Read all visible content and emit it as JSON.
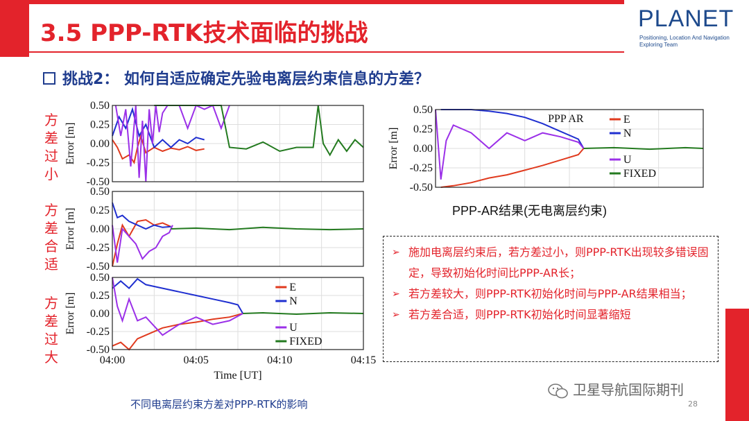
{
  "slide": {
    "title": "3.5 PPP-RTK技术面临的挑战",
    "subtitle": "挑战2： 如何自适应确定先验电离层约束信息的方差？",
    "logo": {
      "name": "PLANET",
      "line1": "Positioning, Location And Navigation",
      "line2": "Exploring Team"
    },
    "row_labels": [
      "方差过小",
      "方差合适",
      "方差过大"
    ],
    "caption_left": "不同电离层约束方差对PPP-RTK的影响",
    "caption_right": "PPP-AR结果(无电离层约束)",
    "notes": [
      "施加电离层约束后，若方差过小，则PPP-RTK出现较多错误固定，导致初始化时间比PPP-AR长；",
      "若方差较大，则PPP-RTK初始化时间与PPP-AR结果相当；",
      "若方差合适，则PPP-RTK初始化时间显著缩短"
    ],
    "watermark": "卫星导航国际期刊",
    "page_number": "28",
    "colors": {
      "accent": "#e3232b",
      "navy": "#1f3c8e",
      "E": "#e03a1e",
      "N": "#1f2fd0",
      "U": "#9b30e8",
      "FIXED": "#237a1f"
    }
  },
  "chart_data": [
    {
      "type": "line",
      "id": "too-small",
      "ylabel": "Error [m]",
      "ylim": [
        -0.5,
        0.5
      ],
      "yticks": [
        "0.50",
        "0.25",
        "0.00",
        "-0.25",
        "-0.50"
      ],
      "xlim_min": [
        0,
        15
      ],
      "xticks": [],
      "series": [
        {
          "name": "E",
          "x": [
            0,
            0.3,
            0.6,
            1,
            1.3,
            1.5,
            1.7,
            2,
            2.5,
            3,
            3.5,
            4,
            4.5,
            5,
            5.5
          ],
          "y": [
            0.05,
            -0.05,
            -0.2,
            -0.15,
            -0.25,
            -0.05,
            0.1,
            -0.12,
            -0.05,
            -0.1,
            -0.06,
            -0.08,
            -0.04,
            -0.09,
            -0.07
          ]
        },
        {
          "name": "N",
          "x": [
            0,
            0.4,
            0.8,
            1.2,
            1.6,
            2,
            2.5,
            3,
            3.5,
            4,
            4.5,
            5,
            5.5
          ],
          "y": [
            0.1,
            0.35,
            0.2,
            0.45,
            0.1,
            0.25,
            -0.05,
            0.05,
            -0.05,
            0.05,
            0.0,
            0.08,
            0.05
          ]
        },
        {
          "name": "U",
          "x": [
            0.2,
            0.5,
            0.8,
            1.1,
            1.4,
            1.6,
            1.8,
            2.0,
            2.2,
            2.4,
            2.6,
            2.8,
            3.0,
            3.3,
            3.6,
            4,
            4.5,
            5,
            5.5,
            6,
            6.5,
            7
          ],
          "y": [
            0.5,
            0.1,
            0.45,
            -0.3,
            0.5,
            -0.45,
            0.3,
            -0.5,
            0.45,
            0.0,
            0.5,
            0.15,
            0.4,
            0.5,
            0.5,
            0.5,
            0.2,
            0.5,
            0.45,
            0.5,
            0.2,
            0.5
          ]
        },
        {
          "name": "FIXED",
          "x": [
            2.5,
            3.5,
            4.5,
            5.5,
            6.5,
            7,
            8,
            9,
            10,
            11,
            12,
            12.3,
            12.6,
            13,
            13.5,
            14,
            14.5,
            15
          ],
          "y": [
            0.5,
            0.5,
            0.5,
            0.5,
            0.5,
            -0.05,
            -0.07,
            0.02,
            -0.1,
            -0.05,
            -0.05,
            0.5,
            0.0,
            -0.15,
            0.05,
            -0.1,
            0.05,
            -0.05
          ]
        }
      ]
    },
    {
      "type": "line",
      "id": "suitable",
      "ylabel": "Error [m]",
      "ylim": [
        -0.5,
        0.5
      ],
      "yticks": [
        "0.50",
        "0.25",
        "0.00",
        "-0.25",
        "-0.50"
      ],
      "xlim_min": [
        0,
        15
      ],
      "xticks": [],
      "series": [
        {
          "name": "E",
          "x": [
            0,
            0.3,
            0.6,
            1,
            1.5,
            2,
            2.5,
            3,
            3.5
          ],
          "y": [
            -0.5,
            -0.2,
            0.05,
            -0.1,
            0.1,
            0.12,
            0.05,
            0.08,
            0.03
          ]
        },
        {
          "name": "N",
          "x": [
            0,
            0.3,
            0.6,
            1,
            1.5,
            2,
            2.5,
            3,
            3.5
          ],
          "y": [
            0.35,
            0.15,
            0.18,
            0.1,
            0.05,
            0.0,
            0.05,
            0.02,
            0.03
          ]
        },
        {
          "name": "U",
          "x": [
            0,
            0.3,
            0.6,
            1,
            1.4,
            1.8,
            2.2,
            2.6,
            3,
            3.4,
            3.6
          ],
          "y": [
            0.05,
            -0.45,
            0.0,
            -0.1,
            -0.2,
            -0.4,
            -0.3,
            -0.25,
            -0.1,
            -0.05,
            0.05
          ]
        },
        {
          "name": "FIXED",
          "x": [
            3.5,
            5,
            7,
            9,
            11,
            13,
            15
          ],
          "y": [
            0.0,
            0.01,
            -0.01,
            0.02,
            0.0,
            -0.01,
            0.0
          ]
        }
      ]
    },
    {
      "type": "line",
      "id": "too-large",
      "ylabel": "Error [m]",
      "ylim": [
        -0.5,
        0.5
      ],
      "yticks": [
        "0.50",
        "0.25",
        "0.00",
        "-0.25",
        "-0.50"
      ],
      "xlim_min": [
        0,
        15
      ],
      "xticks": [
        "04:00",
        "04:05",
        "04:10",
        "04:15"
      ],
      "xlabel": "Time [UT]",
      "legend": [
        "E",
        "N",
        "U",
        "FIXED"
      ],
      "series": [
        {
          "name": "E",
          "x": [
            0,
            0.5,
            1,
            1.5,
            2,
            3,
            4,
            5,
            6,
            7,
            7.8
          ],
          "y": [
            -0.45,
            -0.4,
            -0.5,
            -0.35,
            -0.3,
            -0.2,
            -0.15,
            -0.12,
            -0.08,
            -0.05,
            0.0
          ]
        },
        {
          "name": "N",
          "x": [
            0,
            0.5,
            1,
            1.5,
            2,
            3,
            4,
            5,
            6,
            7,
            7.5,
            7.8
          ],
          "y": [
            0.35,
            0.45,
            0.35,
            0.48,
            0.4,
            0.35,
            0.3,
            0.25,
            0.2,
            0.15,
            0.12,
            0.0
          ]
        },
        {
          "name": "U",
          "x": [
            0,
            0.3,
            0.6,
            1,
            1.5,
            2,
            3,
            4,
            5,
            6,
            7,
            7.8
          ],
          "y": [
            0.5,
            0.1,
            -0.1,
            0.2,
            -0.1,
            -0.05,
            -0.3,
            -0.15,
            -0.05,
            -0.15,
            -0.1,
            0.0
          ]
        },
        {
          "name": "FIXED",
          "x": [
            7.8,
            9,
            11,
            13,
            15
          ],
          "y": [
            0.0,
            0.01,
            -0.01,
            0.01,
            0.0
          ]
        }
      ]
    },
    {
      "type": "line",
      "id": "ppp-ar",
      "ylabel": "Error [m]",
      "ylim": [
        -0.5,
        0.5
      ],
      "yticks": [
        "0.50",
        "0.25",
        "0.00",
        "-0.25",
        "-0.50"
      ],
      "xlim_min": [
        0,
        15
      ],
      "xticks": [],
      "annotation": "PPP AR",
      "legend": [
        "E",
        "N",
        "U",
        "FIXED"
      ],
      "series": [
        {
          "name": "E",
          "x": [
            0.3,
            1,
            2,
            3,
            4,
            5,
            6,
            7,
            8,
            8.3
          ],
          "y": [
            -0.5,
            -0.48,
            -0.44,
            -0.38,
            -0.34,
            -0.28,
            -0.22,
            -0.15,
            -0.08,
            0.0
          ]
        },
        {
          "name": "N",
          "x": [
            0.3,
            1,
            2,
            3,
            4,
            5,
            6,
            7,
            8,
            8.3
          ],
          "y": [
            0.5,
            0.5,
            0.5,
            0.48,
            0.45,
            0.4,
            0.32,
            0.22,
            0.12,
            0.0
          ]
        },
        {
          "name": "U",
          "x": [
            0,
            0.3,
            0.6,
            1,
            1.5,
            2,
            3,
            4,
            5,
            6,
            7,
            8,
            8.3
          ],
          "y": [
            0.5,
            -0.4,
            0.1,
            0.3,
            0.25,
            0.2,
            0.0,
            0.2,
            0.1,
            0.2,
            0.15,
            0.08,
            0.0
          ]
        },
        {
          "name": "FIXED",
          "x": [
            8.3,
            10,
            12,
            14,
            15
          ],
          "y": [
            0.0,
            0.01,
            -0.01,
            0.01,
            0.0
          ]
        }
      ]
    }
  ]
}
